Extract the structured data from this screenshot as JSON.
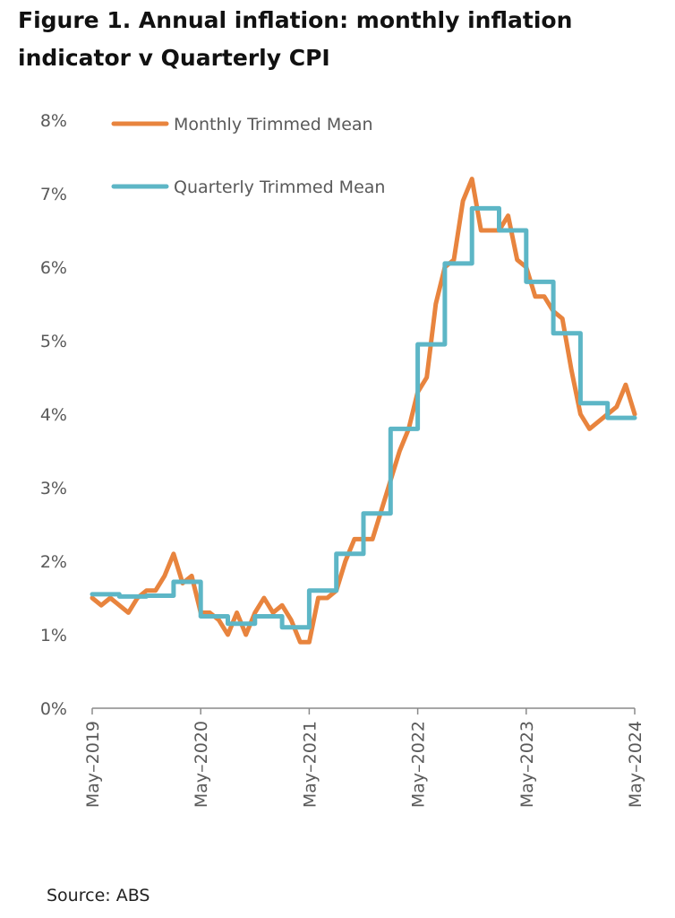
{
  "title": "Figure 1. Annual inflation:  monthly inflation indicator v Quarterly CPI",
  "source": "Source: ABS",
  "colors": {
    "monthly": "#E8843E",
    "quarterly": "#5DB6C6",
    "axis": "#8a8a8a",
    "text": "#595959"
  },
  "chart_data": {
    "type": "line",
    "title": "Figure 1. Annual inflation:  monthly inflation indicator v Quarterly CPI",
    "xlabel": "",
    "ylabel": "",
    "ylim": [
      0,
      8
    ],
    "xlim": [
      "2019-05",
      "2024-05"
    ],
    "y_ticks": [
      "0%",
      "1%",
      "2%",
      "3%",
      "4%",
      "5%",
      "6%",
      "7%",
      "8%"
    ],
    "x_ticks": [
      "May–2019",
      "May–2020",
      "May–2021",
      "May–2022",
      "May–2023",
      "May–2024"
    ],
    "grid": false,
    "legend": "top-left",
    "series": [
      {
        "name": "Monthly Trimmed Mean",
        "color": "#E8843E",
        "style": "line",
        "x": [
          "2019-05",
          "2019-06",
          "2019-07",
          "2019-08",
          "2019-09",
          "2019-10",
          "2019-11",
          "2019-12",
          "2020-01",
          "2020-02",
          "2020-03",
          "2020-04",
          "2020-05",
          "2020-06",
          "2020-07",
          "2020-08",
          "2020-09",
          "2020-10",
          "2020-11",
          "2020-12",
          "2021-01",
          "2021-02",
          "2021-03",
          "2021-04",
          "2021-05",
          "2021-06",
          "2021-07",
          "2021-08",
          "2021-09",
          "2021-10",
          "2021-11",
          "2021-12",
          "2022-01",
          "2022-02",
          "2022-03",
          "2022-04",
          "2022-05",
          "2022-06",
          "2022-07",
          "2022-08",
          "2022-09",
          "2022-10",
          "2022-11",
          "2022-12",
          "2023-01",
          "2023-02",
          "2023-03",
          "2023-04",
          "2023-05",
          "2023-06",
          "2023-07",
          "2023-08",
          "2023-09",
          "2023-10",
          "2023-11",
          "2023-12",
          "2024-01",
          "2024-02",
          "2024-03",
          "2024-04",
          "2024-05"
        ],
        "y": [
          1.5,
          1.4,
          1.5,
          1.4,
          1.3,
          1.5,
          1.6,
          1.6,
          1.8,
          2.1,
          1.7,
          1.8,
          1.3,
          1.3,
          1.2,
          1.0,
          1.3,
          1.0,
          1.3,
          1.5,
          1.3,
          1.4,
          1.2,
          0.9,
          0.9,
          1.5,
          1.5,
          1.6,
          2.0,
          2.3,
          2.3,
          2.3,
          2.7,
          3.1,
          3.5,
          3.8,
          4.3,
          4.5,
          5.5,
          6.0,
          6.1,
          6.9,
          7.2,
          6.5,
          6.5,
          6.5,
          6.7,
          6.1,
          6.0,
          5.6,
          5.6,
          5.4,
          5.3,
          4.6,
          4.0,
          3.8,
          3.9,
          4.0,
          4.1,
          4.4,
          4.0
        ]
      },
      {
        "name": "Quarterly Trimmed Mean",
        "color": "#5DB6C6",
        "style": "step",
        "x": [
          "2019-05",
          "2019-08",
          "2019-11",
          "2020-02",
          "2020-05",
          "2020-08",
          "2020-11",
          "2021-02",
          "2021-05",
          "2021-08",
          "2021-11",
          "2022-02",
          "2022-05",
          "2022-08",
          "2022-11",
          "2023-02",
          "2023-05",
          "2023-08",
          "2023-11",
          "2024-02",
          "2024-05"
        ],
        "y": [
          1.55,
          1.52,
          1.53,
          1.72,
          1.25,
          1.15,
          1.25,
          1.1,
          1.6,
          2.1,
          2.65,
          3.8,
          4.95,
          6.05,
          6.8,
          6.5,
          5.8,
          5.1,
          4.15,
          3.95,
          3.95
        ]
      }
    ]
  }
}
